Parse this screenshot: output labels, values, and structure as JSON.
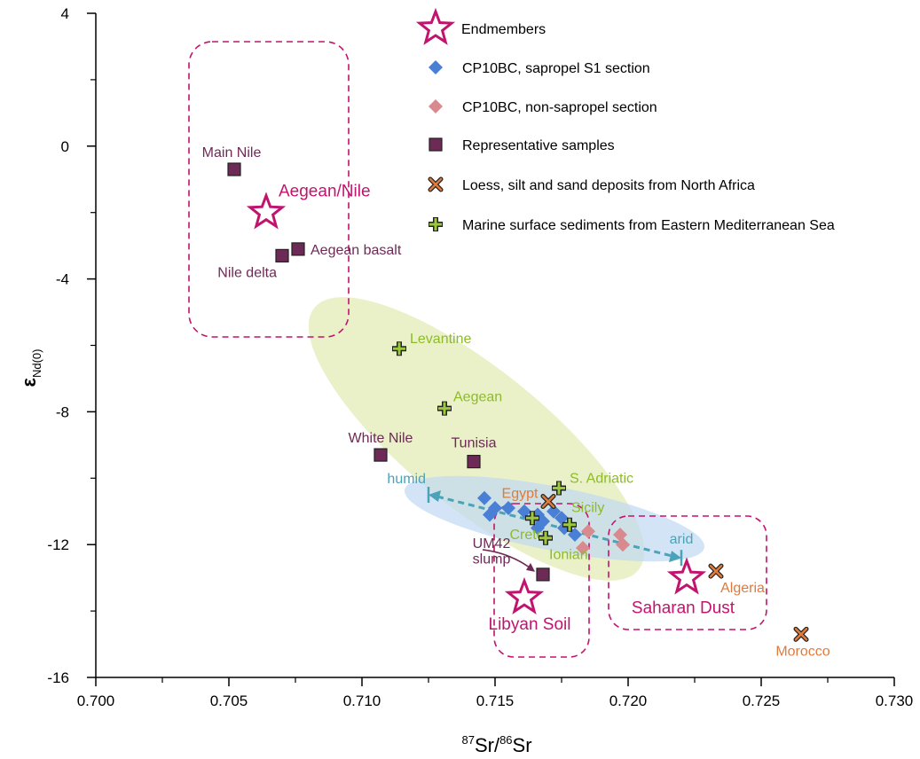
{
  "chart_data": {
    "type": "scatter",
    "xlabel_sup1": "87",
    "xlabel_mid": "Sr/",
    "xlabel_sup2": "86",
    "xlabel_end": "Sr",
    "ylabel_main": "ε",
    "ylabel_sub": "Nd(0)",
    "xlim": [
      0.7,
      0.73
    ],
    "ylim": [
      -16,
      4
    ],
    "xticks": [
      "0.700",
      "0.705",
      "0.710",
      "0.715",
      "0.720",
      "0.725",
      "0.730"
    ],
    "yticks": [
      "4",
      "0",
      "-4",
      "-8",
      "-12",
      "-16"
    ],
    "legend_position": "top-right",
    "legend": [
      {
        "label": "Endmembers",
        "marker": "star-icon",
        "color": "#c0146e"
      },
      {
        "label": "CP10BC, sapropel S1 section",
        "marker": "diamond-icon",
        "color": "#4a7fd6"
      },
      {
        "label": "CP10BC, non-sapropel section",
        "marker": "diamond-icon",
        "color": "#d98a8e"
      },
      {
        "label": "Representative samples",
        "marker": "square-icon",
        "color": "#6e2a57"
      },
      {
        "label": "Loess, silt and sand deposits from North Africa",
        "marker": "cross-x-icon",
        "color": "#e07a3c"
      },
      {
        "label": "Marine surface sediments from Eastern Mediterranean Sea",
        "marker": "plus-icon",
        "color": "#9bc93a"
      }
    ],
    "endmembers": [
      {
        "label": "Aegean/Nile",
        "x": 0.7064,
        "y": -2.0
      },
      {
        "label": "Libyan Soil",
        "x": 0.7161,
        "y": -13.6
      },
      {
        "label": "Saharan Dust",
        "x": 0.7222,
        "y": -13.0
      }
    ],
    "sapropel_s1": [
      {
        "x": 0.7146,
        "y": -10.6
      },
      {
        "x": 0.715,
        "y": -10.9
      },
      {
        "x": 0.7155,
        "y": -10.9
      },
      {
        "x": 0.7148,
        "y": -11.1
      },
      {
        "x": 0.7161,
        "y": -11.0
      },
      {
        "x": 0.7166,
        "y": -11.1
      },
      {
        "x": 0.7172,
        "y": -11.0
      },
      {
        "x": 0.7175,
        "y": -11.2
      },
      {
        "x": 0.7168,
        "y": -11.3
      },
      {
        "x": 0.7176,
        "y": -11.5
      },
      {
        "x": 0.7166,
        "y": -11.5
      },
      {
        "x": 0.718,
        "y": -11.7
      }
    ],
    "non_sapropel": [
      {
        "x": 0.7185,
        "y": -11.6
      },
      {
        "x": 0.7197,
        "y": -11.7
      },
      {
        "x": 0.7198,
        "y": -12.0
      },
      {
        "x": 0.7183,
        "y": -12.1
      }
    ],
    "representative": [
      {
        "label": "Main Nile",
        "x": 0.7052,
        "y": -0.7
      },
      {
        "label": "Aegean basalt",
        "x": 0.7076,
        "y": -3.1
      },
      {
        "label": "Nile delta",
        "x": 0.707,
        "y": -3.3
      },
      {
        "label": "White Nile",
        "x": 0.7107,
        "y": -9.3
      },
      {
        "label": "Tunisia",
        "x": 0.7142,
        "y": -9.5
      },
      {
        "label": "UM42\nslump",
        "x": 0.7168,
        "y": -12.9
      }
    ],
    "north_africa": [
      {
        "label": "Egypt",
        "x": 0.717,
        "y": -10.7
      },
      {
        "label": "Algeria",
        "x": 0.7233,
        "y": -12.8
      },
      {
        "label": "Morocco",
        "x": 0.7265,
        "y": -14.7
      }
    ],
    "marine": [
      {
        "label": "Levantine",
        "x": 0.7114,
        "y": -6.1
      },
      {
        "label": "Aegean",
        "x": 0.7131,
        "y": -7.9
      },
      {
        "label": "S. Adriatic",
        "x": 0.7174,
        "y": -10.3
      },
      {
        "label": "Sicily",
        "x": 0.7178,
        "y": -11.4
      },
      {
        "label": "Crete",
        "x": 0.7164,
        "y": -11.2
      },
      {
        "label": "Ionian",
        "x": 0.7169,
        "y": -11.8
      }
    ],
    "arrow": {
      "start_label": "humid",
      "end_label": "arid",
      "x0": 0.7125,
      "y0": -10.5,
      "x1": 0.722,
      "y1": -12.4,
      "color": "#4aa3b8"
    }
  }
}
